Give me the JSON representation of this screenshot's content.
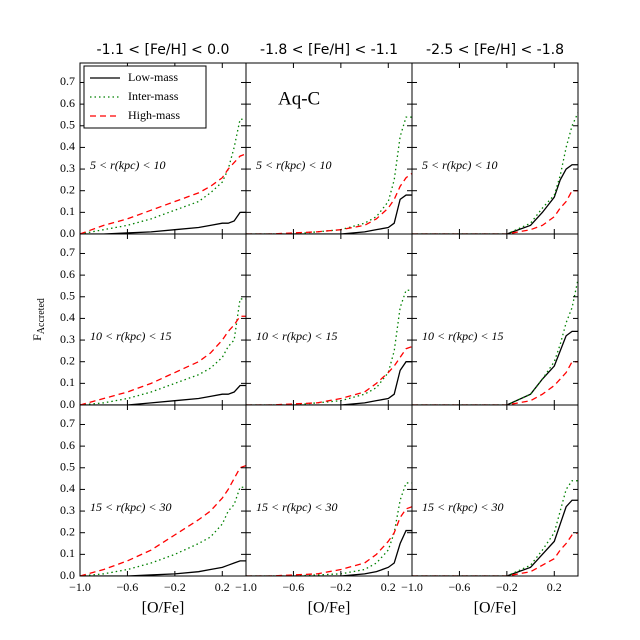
{
  "chart_data": [
    {
      "type": "line",
      "title": "-1.1 < [Fe/H] < 0.0",
      "annotation": "5 < r(kpc) < 10",
      "legend": "upper left",
      "xtick_labels": false,
      "ytick_labels": true,
      "x": [
        -1.0,
        -0.8,
        -0.6,
        -0.4,
        -0.2,
        0.0,
        0.1,
        0.2,
        0.25,
        0.3,
        0.35,
        0.4
      ],
      "xlim": [
        -1.0,
        0.4
      ],
      "ylim": [
        0,
        0.79
      ],
      "xticks": [
        -1.0,
        -0.6,
        -0.2,
        0.2
      ],
      "yticks": [
        {
          "value": 0,
          "label": "0.0"
        },
        0.1,
        0.2,
        0.3,
        0.4,
        0.5,
        0.6,
        0.7
      ],
      "series": [
        {
          "name": "Low-mass",
          "color": "#000000",
          "style": "solid",
          "values": [
            0,
            0,
            0.005,
            0.01,
            0.02,
            0.03,
            0.04,
            0.05,
            0.05,
            0.06,
            0.1,
            0.1
          ]
        },
        {
          "name": "Inter-mass",
          "color": "#008000",
          "style": "dotted",
          "values": [
            0,
            0.02,
            0.04,
            0.07,
            0.11,
            0.15,
            0.19,
            0.24,
            0.3,
            0.4,
            0.53,
            0.53
          ]
        },
        {
          "name": "High-mass",
          "color": "#ff0000",
          "style": "dashed",
          "values": [
            0,
            0.04,
            0.07,
            0.11,
            0.15,
            0.19,
            0.22,
            0.26,
            0.3,
            0.33,
            0.36,
            0.37
          ]
        }
      ]
    },
    {
      "type": "line",
      "title": "-1.8 < [Fe/H] < -1.1",
      "annotation": "5 < r(kpc) < 10",
      "inset_label": "Aq-C",
      "xtick_labels": false,
      "ytick_labels": false,
      "x": [
        -1.0,
        -0.8,
        -0.6,
        -0.4,
        -0.2,
        0.0,
        0.1,
        0.2,
        0.25,
        0.3,
        0.35,
        0.4
      ],
      "xlim": [
        -1.0,
        0.4
      ],
      "ylim": [
        0,
        0.79
      ],
      "xticks": [
        -1.0,
        -0.6,
        -0.2,
        0.2
      ],
      "yticks": [
        0,
        0.1,
        0.2,
        0.3,
        0.4,
        0.5,
        0.6,
        0.7
      ],
      "series": [
        {
          "color": "#000000",
          "style": "solid",
          "values": [
            0,
            0,
            0,
            0,
            0,
            0.01,
            0.02,
            0.03,
            0.05,
            0.16,
            0.18,
            0.18
          ]
        },
        {
          "color": "#008000",
          "style": "dotted",
          "values": [
            0,
            0,
            0,
            0.01,
            0.02,
            0.05,
            0.08,
            0.15,
            0.25,
            0.45,
            0.54,
            0.54
          ]
        },
        {
          "color": "#ff0000",
          "style": "dashed",
          "values": [
            0,
            0,
            0.005,
            0.01,
            0.02,
            0.04,
            0.07,
            0.12,
            0.16,
            0.22,
            0.26,
            0.28
          ]
        }
      ]
    },
    {
      "type": "line",
      "title": "-2.5 < [Fe/H] < -1.8",
      "annotation": "5 < r(kpc) < 10",
      "xtick_labels": false,
      "ytick_labels": false,
      "x": [
        -1.0,
        -0.8,
        -0.6,
        -0.4,
        -0.2,
        0.0,
        0.1,
        0.2,
        0.25,
        0.3,
        0.35,
        0.4
      ],
      "xlim": [
        -1.0,
        0.4
      ],
      "ylim": [
        0,
        0.79
      ],
      "xticks": [
        -1.0,
        -0.6,
        -0.2,
        0.2
      ],
      "yticks": [
        0,
        0.1,
        0.2,
        0.3,
        0.4,
        0.5,
        0.6,
        0.7
      ],
      "series": [
        {
          "color": "#000000",
          "style": "solid",
          "values": [
            0,
            0,
            0,
            0,
            0,
            0.04,
            0.1,
            0.17,
            0.25,
            0.3,
            0.32,
            0.32
          ]
        },
        {
          "color": "#008000",
          "style": "dotted",
          "values": [
            0,
            0,
            0,
            0,
            0,
            0.05,
            0.12,
            0.18,
            0.27,
            0.4,
            0.5,
            0.56
          ]
        },
        {
          "color": "#ff0000",
          "style": "dashed",
          "values": [
            0,
            0,
            0,
            0,
            0,
            0.02,
            0.04,
            0.08,
            0.12,
            0.15,
            0.2,
            0.2
          ]
        }
      ]
    },
    {
      "type": "line",
      "annotation": "10 < r(kpc) < 15",
      "ylabel": "F",
      "ylabel_sub": "Accreted",
      "xtick_labels": false,
      "ytick_labels": true,
      "x": [
        -1.0,
        -0.8,
        -0.6,
        -0.4,
        -0.2,
        0.0,
        0.1,
        0.2,
        0.25,
        0.3,
        0.35,
        0.4
      ],
      "xlim": [
        -1.0,
        0.4
      ],
      "ylim": [
        0,
        0.79
      ],
      "xticks": [
        -1.0,
        -0.6,
        -0.2,
        0.2
      ],
      "yticks": [
        {
          "value": 0,
          "label": "0.0"
        },
        0.1,
        0.2,
        0.3,
        0.4,
        0.5,
        0.6,
        0.7
      ],
      "series": [
        {
          "color": "#000000",
          "style": "solid",
          "values": [
            0,
            0,
            0,
            0.01,
            0.02,
            0.03,
            0.04,
            0.05,
            0.05,
            0.06,
            0.09,
            0.09
          ]
        },
        {
          "color": "#008000",
          "style": "dotted",
          "values": [
            0,
            0.01,
            0.03,
            0.06,
            0.1,
            0.14,
            0.17,
            0.22,
            0.27,
            0.3,
            0.49,
            0.49
          ]
        },
        {
          "color": "#ff0000",
          "style": "dashed",
          "values": [
            0,
            0.03,
            0.06,
            0.1,
            0.15,
            0.2,
            0.24,
            0.3,
            0.34,
            0.37,
            0.41,
            0.41
          ]
        }
      ]
    },
    {
      "type": "line",
      "annotation": "10 < r(kpc) < 15",
      "xtick_labels": false,
      "ytick_labels": false,
      "x": [
        -1.0,
        -0.8,
        -0.6,
        -0.4,
        -0.2,
        0.0,
        0.1,
        0.2,
        0.25,
        0.3,
        0.35,
        0.4
      ],
      "xlim": [
        -1.0,
        0.4
      ],
      "ylim": [
        0,
        0.79
      ],
      "xticks": [
        -1.0,
        -0.6,
        -0.2,
        0.2
      ],
      "yticks": [
        0,
        0.1,
        0.2,
        0.3,
        0.4,
        0.5,
        0.6,
        0.7
      ],
      "series": [
        {
          "color": "#000000",
          "style": "solid",
          "values": [
            0,
            0,
            0,
            0,
            0,
            0.01,
            0.02,
            0.03,
            0.05,
            0.16,
            0.2,
            0.2
          ]
        },
        {
          "color": "#008000",
          "style": "dotted",
          "values": [
            0,
            0,
            0,
            0.01,
            0.02,
            0.05,
            0.08,
            0.15,
            0.25,
            0.45,
            0.53,
            0.53
          ]
        },
        {
          "color": "#ff0000",
          "style": "dashed",
          "values": [
            0,
            0,
            0.005,
            0.01,
            0.03,
            0.06,
            0.1,
            0.15,
            0.18,
            0.22,
            0.26,
            0.27
          ]
        }
      ]
    },
    {
      "type": "line",
      "annotation": "10 < r(kpc) < 15",
      "xtick_labels": false,
      "ytick_labels": false,
      "x": [
        -1.0,
        -0.8,
        -0.6,
        -0.4,
        -0.2,
        0.0,
        0.1,
        0.2,
        0.25,
        0.3,
        0.35,
        0.4
      ],
      "xlim": [
        -1.0,
        0.4
      ],
      "ylim": [
        0,
        0.79
      ],
      "xticks": [
        -1.0,
        -0.6,
        -0.2,
        0.2
      ],
      "yticks": [
        0,
        0.1,
        0.2,
        0.3,
        0.4,
        0.5,
        0.6,
        0.7
      ],
      "series": [
        {
          "color": "#000000",
          "style": "solid",
          "values": [
            0,
            0,
            0,
            0,
            0,
            0.05,
            0.12,
            0.18,
            0.25,
            0.32,
            0.34,
            0.34
          ]
        },
        {
          "color": "#008000",
          "style": "dotted",
          "values": [
            0,
            0,
            0,
            0,
            0,
            0.05,
            0.12,
            0.2,
            0.28,
            0.38,
            0.45,
            0.58
          ]
        },
        {
          "color": "#ff0000",
          "style": "dashed",
          "values": [
            0,
            0,
            0,
            0,
            0,
            0.02,
            0.05,
            0.09,
            0.12,
            0.15,
            0.2,
            0.2
          ]
        }
      ]
    },
    {
      "type": "line",
      "annotation": "15 < r(kpc) < 30",
      "xlabel": "[O/Fe]",
      "xtick_labels": true,
      "ytick_labels": true,
      "x": [
        -1.0,
        -0.8,
        -0.6,
        -0.4,
        -0.2,
        0.0,
        0.1,
        0.2,
        0.25,
        0.3,
        0.35,
        0.4
      ],
      "xlim": [
        -1.0,
        0.4
      ],
      "ylim": [
        0,
        0.79
      ],
      "xticks": [
        {
          "value": -1.0,
          "label": "−1.0"
        },
        {
          "value": -0.6,
          "label": "−0.6"
        },
        {
          "value": -0.2,
          "label": "−0.2"
        },
        0.2
      ],
      "yticks": [
        {
          "value": 0,
          "label": "0.0"
        },
        0.1,
        0.2,
        0.3,
        0.4,
        0.5,
        0.6,
        0.7
      ],
      "series": [
        {
          "color": "#000000",
          "style": "solid",
          "values": [
            0,
            0,
            0,
            0.005,
            0.01,
            0.02,
            0.03,
            0.04,
            0.05,
            0.06,
            0.07,
            0.07
          ]
        },
        {
          "color": "#008000",
          "style": "dotted",
          "values": [
            0,
            0.01,
            0.03,
            0.06,
            0.1,
            0.15,
            0.18,
            0.24,
            0.3,
            0.33,
            0.41,
            0.41
          ]
        },
        {
          "color": "#ff0000",
          "style": "dashed",
          "values": [
            0,
            0.03,
            0.07,
            0.12,
            0.19,
            0.26,
            0.3,
            0.36,
            0.4,
            0.45,
            0.5,
            0.51
          ]
        }
      ]
    },
    {
      "type": "line",
      "annotation": "15 < r(kpc) < 30",
      "xlabel": "[O/Fe]",
      "xtick_labels": true,
      "ytick_labels": false,
      "x": [
        -1.0,
        -0.8,
        -0.6,
        -0.4,
        -0.2,
        0.0,
        0.1,
        0.2,
        0.25,
        0.3,
        0.35,
        0.4
      ],
      "xlim": [
        -1.0,
        0.4
      ],
      "ylim": [
        0,
        0.79
      ],
      "xticks": [
        {
          "value": -1.0,
          "label": "−1.0"
        },
        {
          "value": -0.6,
          "label": "−0.6"
        },
        {
          "value": -0.2,
          "label": "−0.2"
        },
        0.2
      ],
      "yticks": [
        0,
        0.1,
        0.2,
        0.3,
        0.4,
        0.5,
        0.6,
        0.7
      ],
      "series": [
        {
          "color": "#000000",
          "style": "solid",
          "values": [
            0,
            0,
            0,
            0,
            0,
            0.01,
            0.02,
            0.04,
            0.06,
            0.15,
            0.21,
            0.21
          ]
        },
        {
          "color": "#008000",
          "style": "dotted",
          "values": [
            0,
            0,
            0,
            0.005,
            0.01,
            0.03,
            0.06,
            0.12,
            0.2,
            0.35,
            0.43,
            0.43
          ]
        },
        {
          "color": "#ff0000",
          "style": "dashed",
          "values": [
            0,
            0,
            0.005,
            0.01,
            0.03,
            0.06,
            0.1,
            0.16,
            0.2,
            0.27,
            0.31,
            0.32
          ]
        }
      ]
    },
    {
      "type": "line",
      "annotation": "15 < r(kpc) < 30",
      "xlabel": "[O/Fe]",
      "xtick_labels": true,
      "ytick_labels": false,
      "x": [
        -1.0,
        -0.8,
        -0.6,
        -0.4,
        -0.2,
        0.0,
        0.1,
        0.2,
        0.25,
        0.3,
        0.35,
        0.4
      ],
      "xlim": [
        -1.0,
        0.4
      ],
      "ylim": [
        0,
        0.79
      ],
      "xticks": [
        {
          "value": -1.0,
          "label": "−1.0"
        },
        {
          "value": -0.6,
          "label": "−0.6"
        },
        {
          "value": -0.2,
          "label": "−0.2"
        },
        0.2
      ],
      "yticks": [
        0,
        0.1,
        0.2,
        0.3,
        0.4,
        0.5,
        0.6,
        0.7
      ],
      "series": [
        {
          "color": "#000000",
          "style": "solid",
          "values": [
            0,
            0,
            0,
            0,
            0,
            0.04,
            0.1,
            0.16,
            0.24,
            0.32,
            0.35,
            0.35
          ]
        },
        {
          "color": "#008000",
          "style": "dotted",
          "values": [
            0,
            0,
            0,
            0,
            0,
            0.05,
            0.12,
            0.2,
            0.3,
            0.4,
            0.44,
            0.44
          ]
        },
        {
          "color": "#ff0000",
          "style": "dashed",
          "values": [
            0,
            0,
            0,
            0,
            0,
            0.02,
            0.05,
            0.08,
            0.12,
            0.15,
            0.19,
            0.2
          ]
        }
      ]
    }
  ]
}
